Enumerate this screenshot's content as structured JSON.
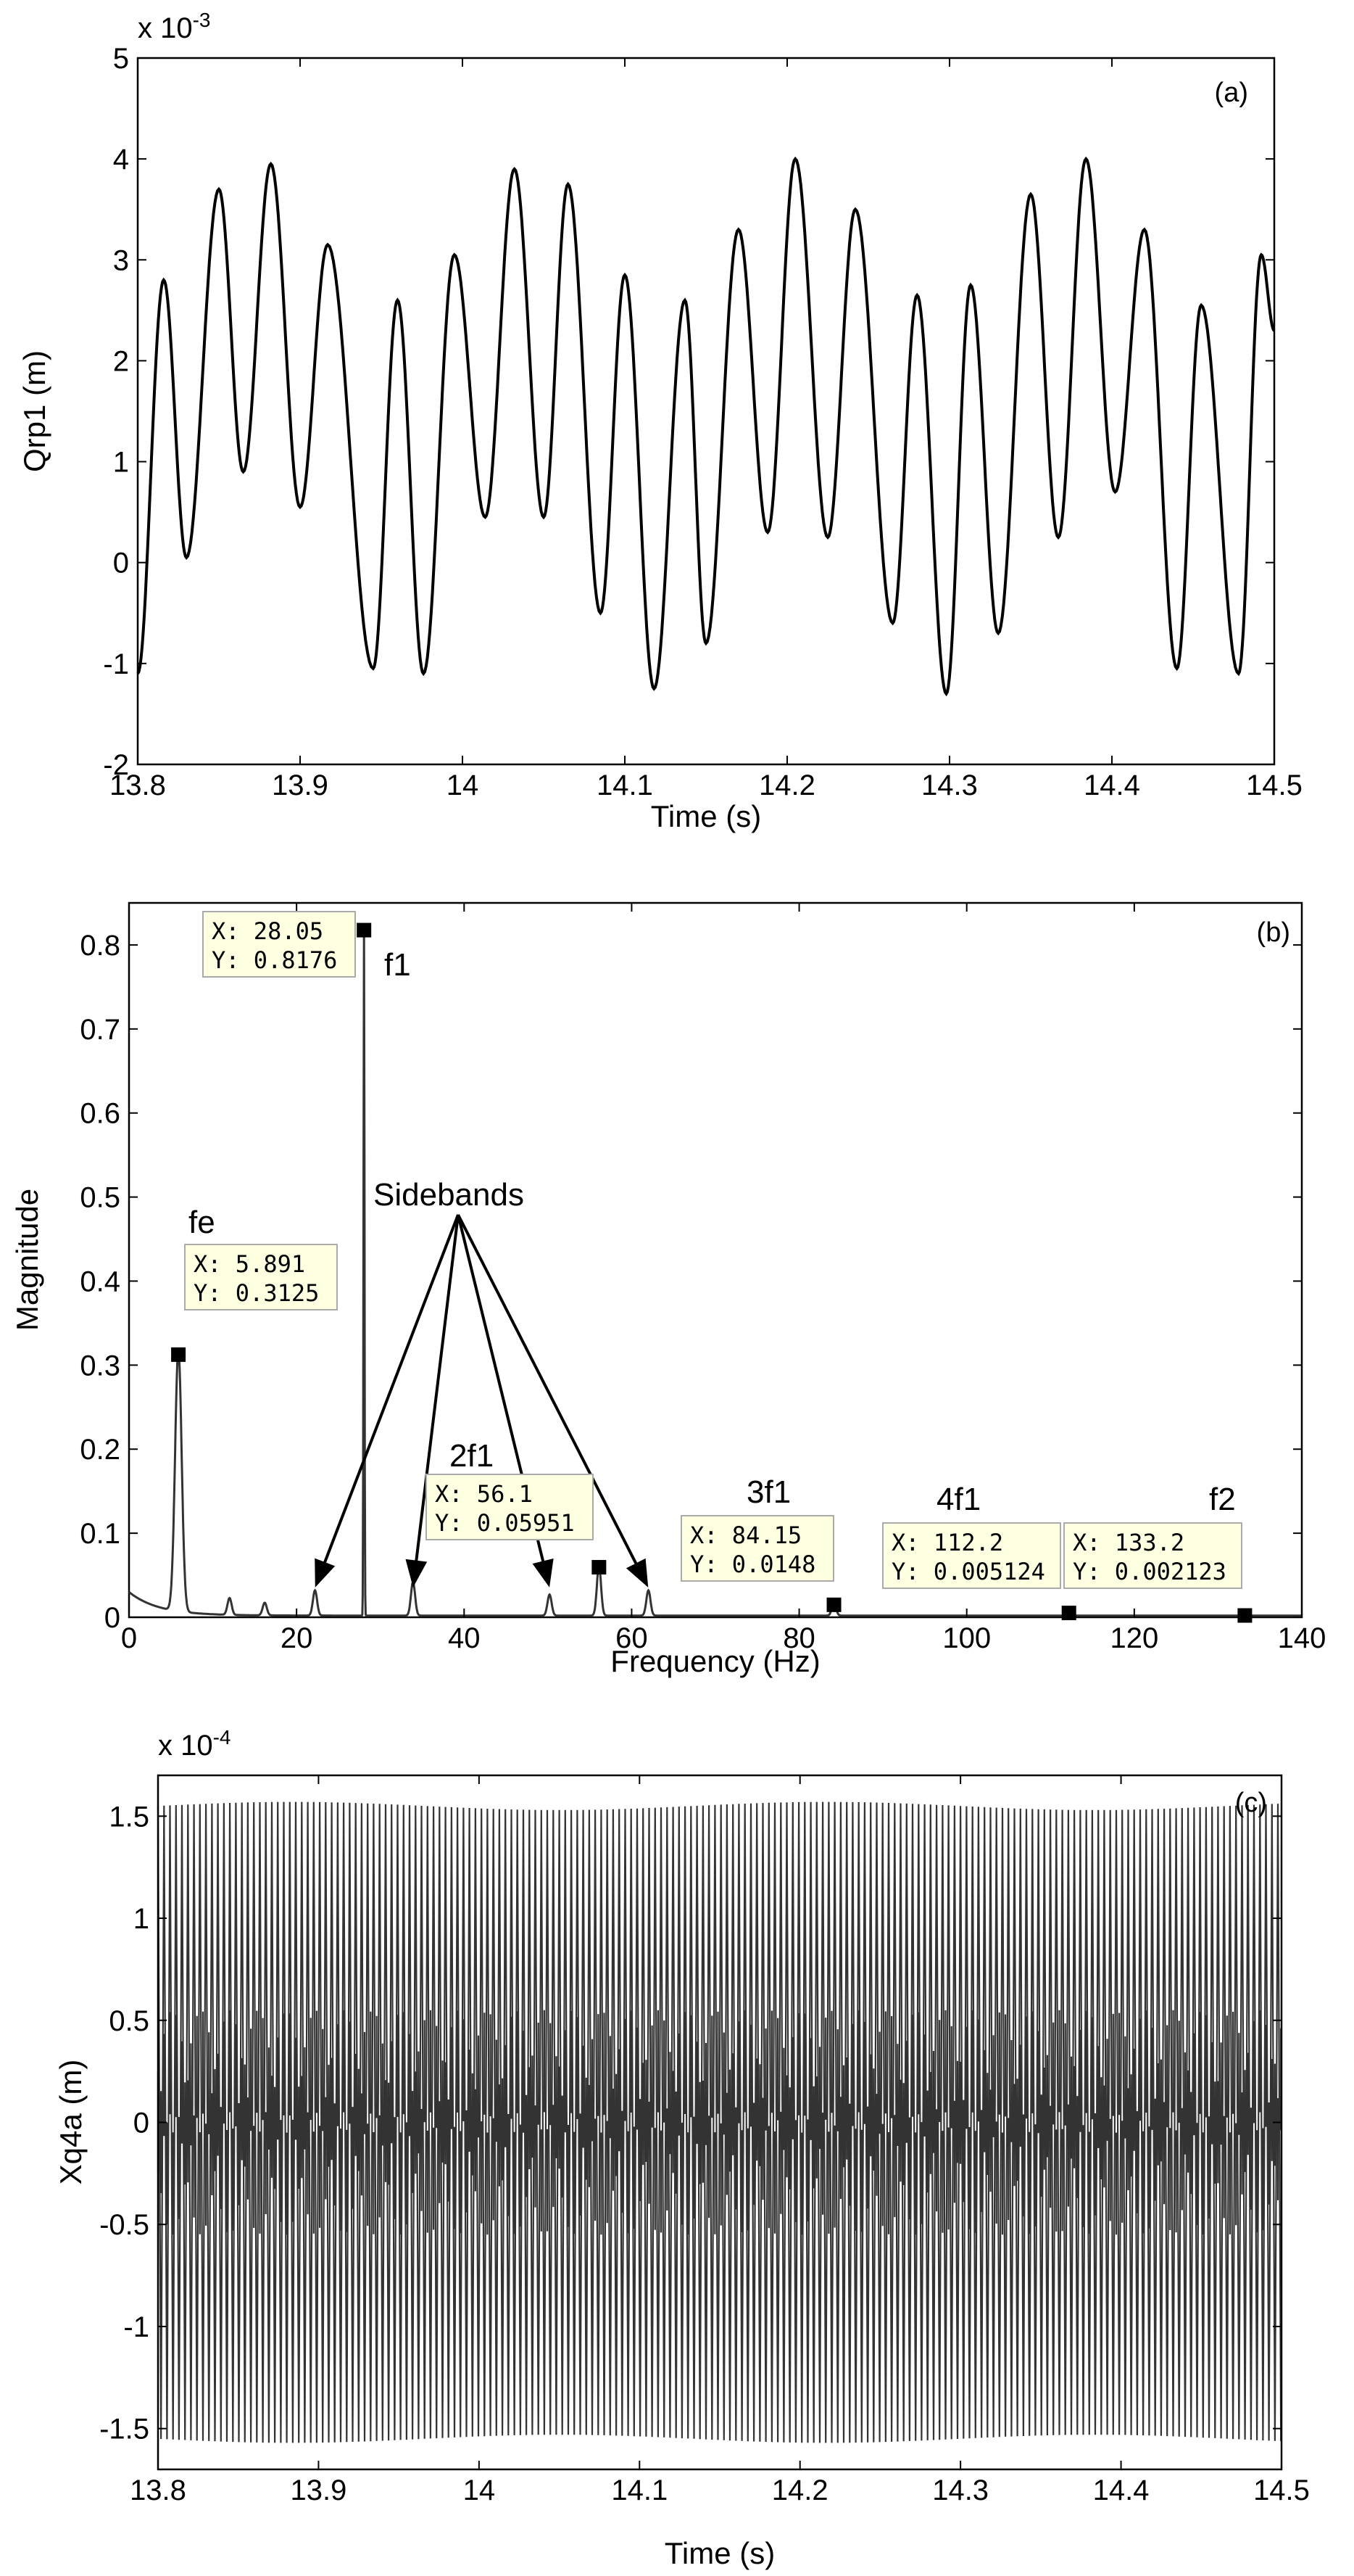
{
  "chart_data": [
    {
      "panel": "(a)",
      "type": "line",
      "xlabel": "Time (s)",
      "ylabel": "Qrp1 (m)",
      "exponent": "x 10-3",
      "exponent_base": "x 10",
      "exponent_power": "-3",
      "xlim": [
        13.8,
        14.5
      ],
      "ylim": [
        -2,
        5
      ],
      "xticks": [
        "13.8",
        "13.9",
        "14",
        "14.1",
        "14.2",
        "14.3",
        "14.4",
        "14.5"
      ],
      "yticks": [
        "-2",
        "-1",
        "0",
        "1",
        "2",
        "3",
        "4",
        "5"
      ],
      "series": [
        {
          "color": "#000000",
          "extrema": [
            [
              13.8,
              -1.1
            ],
            [
              13.816,
              2.8
            ],
            [
              13.83,
              0.05
            ],
            [
              13.85,
              3.7
            ],
            [
              13.865,
              0.9
            ],
            [
              13.882,
              3.95
            ],
            [
              13.9,
              0.55
            ],
            [
              13.917,
              3.15
            ],
            [
              13.945,
              -1.05
            ],
            [
              13.96,
              2.6
            ],
            [
              13.976,
              -1.1
            ],
            [
              13.995,
              3.05
            ],
            [
              14.014,
              0.45
            ],
            [
              14.032,
              3.9
            ],
            [
              14.05,
              0.45
            ],
            [
              14.065,
              3.75
            ],
            [
              14.085,
              -0.5
            ],
            [
              14.1,
              2.85
            ],
            [
              14.118,
              -1.25
            ],
            [
              14.137,
              2.6
            ],
            [
              14.15,
              -0.8
            ],
            [
              14.17,
              3.3
            ],
            [
              14.188,
              0.3
            ],
            [
              14.205,
              4.0
            ],
            [
              14.225,
              0.25
            ],
            [
              14.242,
              3.5
            ],
            [
              14.265,
              -0.6
            ],
            [
              14.28,
              2.65
            ],
            [
              14.298,
              -1.3
            ],
            [
              14.313,
              2.75
            ],
            [
              14.33,
              -0.7
            ],
            [
              14.35,
              3.65
            ],
            [
              14.367,
              0.25
            ],
            [
              14.384,
              4.0
            ],
            [
              14.402,
              0.7
            ],
            [
              14.42,
              3.3
            ],
            [
              14.44,
              -1.05
            ],
            [
              14.455,
              2.55
            ],
            [
              14.478,
              -1.1
            ],
            [
              14.492,
              3.05
            ],
            [
              14.5,
              2.3
            ]
          ]
        }
      ]
    },
    {
      "panel": "(b)",
      "type": "line",
      "xlabel": "Frequency (Hz)",
      "ylabel": "Magnitude",
      "xlim": [
        0,
        140
      ],
      "ylim": [
        0,
        0.85
      ],
      "xticks": [
        "0",
        "20",
        "40",
        "60",
        "80",
        "100",
        "120",
        "140"
      ],
      "yticks": [
        "0",
        "0.1",
        "0.2",
        "0.3",
        "0.4",
        "0.5",
        "0.6",
        "0.7",
        "0.8"
      ],
      "peaks": [
        {
          "x": 5.891,
          "y": 0.3125
        },
        {
          "x": 12,
          "y": 0.02
        },
        {
          "x": 16.2,
          "y": 0.015
        },
        {
          "x": 22.2,
          "y": 0.03
        },
        {
          "x": 28.05,
          "y": 0.8176
        },
        {
          "x": 33.9,
          "y": 0.04
        },
        {
          "x": 50.2,
          "y": 0.025
        },
        {
          "x": 56.1,
          "y": 0.05951
        },
        {
          "x": 62,
          "y": 0.03
        },
        {
          "x": 84.15,
          "y": 0.0148
        },
        {
          "x": 112.2,
          "y": 0.005124
        },
        {
          "x": 133.2,
          "y": 0.002123
        }
      ],
      "datatips": [
        {
          "x": 28.05,
          "y": 0.8176,
          "x_text": "X: 28.05",
          "y_text": "Y: 0.8176"
        },
        {
          "x": 5.891,
          "y": 0.3125,
          "x_text": "X: 5.891",
          "y_text": "Y: 0.3125"
        },
        {
          "x": 56.1,
          "y": 0.05951,
          "x_text": "X: 56.1",
          "y_text": "Y: 0.05951"
        },
        {
          "x": 84.15,
          "y": 0.0148,
          "x_text": "X: 84.15",
          "y_text": "Y: 0.0148"
        },
        {
          "x": 112.2,
          "y": 0.005124,
          "x_text": "X: 112.2",
          "y_text": "Y: 0.005124"
        },
        {
          "x": 133.2,
          "y": 0.002123,
          "x_text": "X: 133.2",
          "y_text": "Y: 0.002123"
        }
      ],
      "annotations": {
        "fe": "fe",
        "f1": "f1",
        "sidebands": "Sidebands",
        "2f1": "2f1",
        "3f1": "3f1",
        "4f1": "4f1",
        "f2": "f2"
      },
      "sideband_targets": [
        22.2,
        33.9,
        50.2,
        62
      ]
    },
    {
      "panel": "(c)",
      "type": "line",
      "xlabel": "Time (s)",
      "ylabel": "Xq4a (m)",
      "exponent": "x 10-4",
      "exponent_base": "x 10",
      "exponent_power": "-4",
      "xlim": [
        13.8,
        14.5
      ],
      "ylim": [
        -1.7,
        1.7
      ],
      "xticks": [
        "13.8",
        "13.9",
        "14",
        "14.1",
        "14.2",
        "14.3",
        "14.4",
        "14.5"
      ],
      "yticks": [
        "-1.5",
        "-1",
        "-0.5",
        "0",
        "0.5",
        "1",
        "1.5"
      ],
      "series": [
        {
          "color": "#333333",
          "amplitude": 1.55,
          "carrier_hz": 268,
          "beat_hz": 28.05,
          "inner_amplitude": 0.3
        }
      ]
    }
  ]
}
